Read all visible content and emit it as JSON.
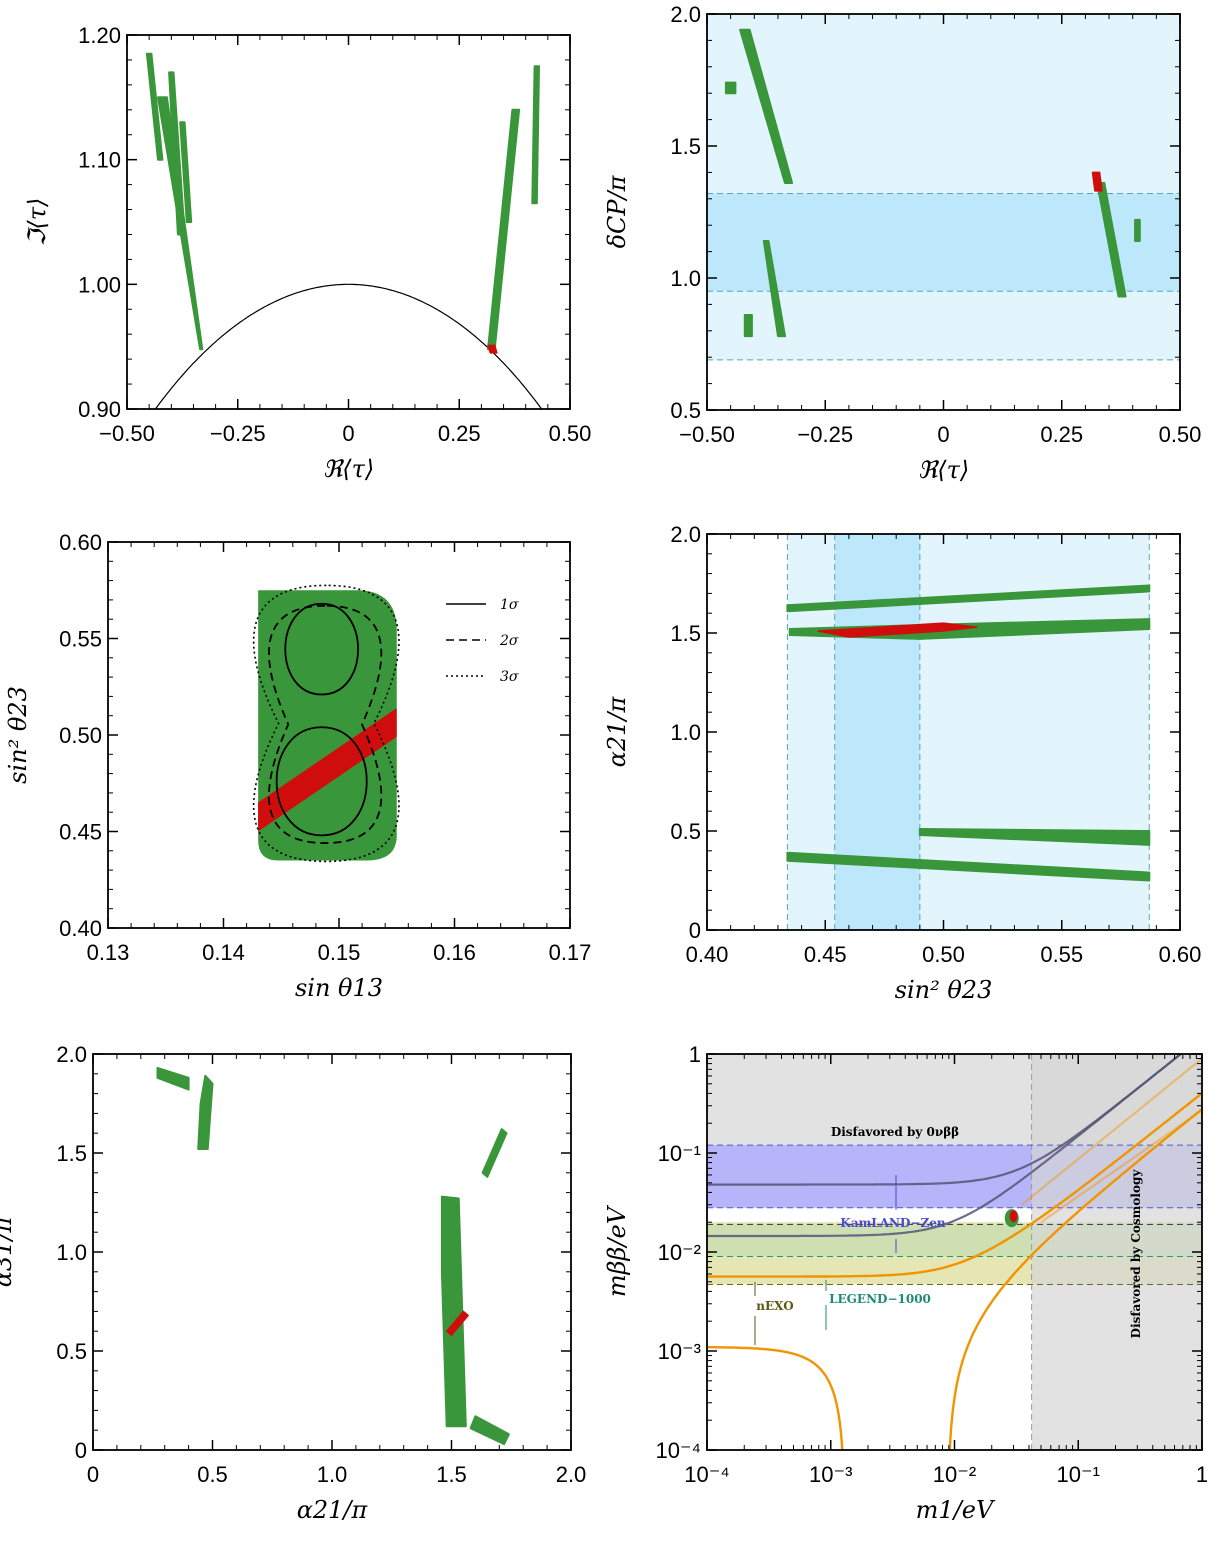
{
  "colors": {
    "green": "#3a963a",
    "red": "#d00d0d",
    "band_light": "#e2f4fc",
    "band_dark": "#bde8fb",
    "band_edge": "#5aa3b8",
    "curve": "#000000",
    "orange": "#f29400",
    "gray": "#e2e2e2",
    "gray_dark": "#d6d6d6",
    "kamland": "#a9a8f8",
    "legend_green": "#c8dfb2",
    "nexo": "#e6e6b4",
    "legend_line": "#2a9a72",
    "kamland_line": "#5454d8",
    "nexo_line": "#6a6a1e"
  },
  "chart_data": [
    {
      "id": "p1",
      "type": "scatter",
      "xlabel": "ℜ⟨τ⟩",
      "ylabel": "ℑ⟨τ⟩",
      "xlim": [
        -0.5,
        0.5
      ],
      "ylim": [
        0.9,
        1.2
      ],
      "xticks": [
        -0.5,
        -0.25,
        0,
        0.25,
        0.5
      ],
      "xtick_labels": [
        "−0.50",
        "−0.25",
        "0",
        "0.25",
        "0.50"
      ],
      "yticks": [
        0.9,
        1.0,
        1.1,
        1.2
      ],
      "ytick_labels": [
        "0.90",
        "1.00",
        "1.10",
        "1.20"
      ],
      "fundamental_domain_boundary": "|τ| = 1",
      "green_regions": [
        {
          "x": [
            -0.455,
            -0.445,
            -0.42,
            -0.43
          ],
          "y": [
            1.185,
            1.185,
            1.1,
            1.1
          ]
        },
        {
          "x": [
            -0.43,
            -0.41,
            -0.33,
            -0.335
          ],
          "y": [
            1.15,
            1.15,
            0.948,
            0.948
          ]
        },
        {
          "x": [
            -0.405,
            -0.395,
            -0.37,
            -0.385
          ],
          "y": [
            1.17,
            1.17,
            1.04,
            1.04
          ]
        },
        {
          "x": [
            -0.38,
            -0.37,
            -0.355,
            -0.365
          ],
          "y": [
            1.13,
            1.13,
            1.05,
            1.05
          ]
        },
        {
          "x": [
            0.315,
            0.33,
            0.385,
            0.37
          ],
          "y": [
            0.948,
            0.948,
            1.14,
            1.14
          ]
        },
        {
          "x": [
            0.415,
            0.425,
            0.43,
            0.42
          ],
          "y": [
            1.065,
            1.065,
            1.175,
            1.175
          ]
        }
      ],
      "red_regions": [
        {
          "x": [
            0.315,
            0.33,
            0.335,
            0.32
          ],
          "y": [
            0.951,
            0.951,
            0.945,
            0.945
          ]
        }
      ]
    },
    {
      "id": "p2",
      "type": "scatter",
      "xlabel": "ℜ⟨τ⟩",
      "ylabel": "δCP/π",
      "xlim": [
        -0.5,
        0.5
      ],
      "ylim": [
        0.5,
        2.0
      ],
      "xticks": [
        -0.5,
        -0.25,
        0,
        0.25,
        0.5
      ],
      "xtick_labels": [
        "−0.50",
        "−0.25",
        "0",
        "0.25",
        "0.50"
      ],
      "yticks": [
        0.5,
        1.0,
        1.5,
        2.0
      ],
      "ytick_labels": [
        "0.5",
        "1.0",
        "1.5",
        "2.0"
      ],
      "bands_3sigma": [
        0.69,
        2.0
      ],
      "bands_1sigma": [
        0.95,
        1.32
      ],
      "green_regions": [
        {
          "x": [
            -0.43,
            -0.41,
            -0.32,
            -0.335
          ],
          "y": [
            1.94,
            1.94,
            1.36,
            1.36
          ]
        },
        {
          "x": [
            -0.46,
            -0.44,
            -0.44,
            -0.46
          ],
          "y": [
            1.74,
            1.74,
            1.7,
            1.7
          ]
        },
        {
          "x": [
            -0.38,
            -0.37,
            -0.335,
            -0.35
          ],
          "y": [
            1.14,
            1.14,
            0.78,
            0.78
          ]
        },
        {
          "x": [
            -0.42,
            -0.405,
            -0.405,
            -0.42
          ],
          "y": [
            0.86,
            0.86,
            0.78,
            0.78
          ]
        },
        {
          "x": [
            0.325,
            0.34,
            0.385,
            0.37
          ],
          "y": [
            1.36,
            1.36,
            0.93,
            0.93
          ]
        },
        {
          "x": [
            0.405,
            0.415,
            0.415,
            0.405
          ],
          "y": [
            1.22,
            1.22,
            1.14,
            1.14
          ]
        }
      ],
      "red_regions": [
        {
          "x": [
            0.315,
            0.33,
            0.335,
            0.32
          ],
          "y": [
            1.4,
            1.4,
            1.33,
            1.33
          ]
        }
      ]
    },
    {
      "id": "p3",
      "type": "scatter",
      "xlabel": "sin θ13",
      "ylabel": "sin² θ23",
      "xlim": [
        0.13,
        0.17
      ],
      "ylim": [
        0.4,
        0.6
      ],
      "xticks": [
        0.13,
        0.14,
        0.15,
        0.16,
        0.17
      ],
      "xtick_labels": [
        "0.13",
        "0.14",
        "0.15",
        "0.16",
        "0.17"
      ],
      "yticks": [
        0.4,
        0.45,
        0.5,
        0.55,
        0.6
      ],
      "ytick_labels": [
        "0.40",
        "0.45",
        "0.50",
        "0.55",
        "0.60"
      ],
      "legend": {
        "position": "top-right",
        "entries": [
          "1σ",
          "2σ",
          "3σ"
        ]
      },
      "green_region": {
        "xrange": [
          0.143,
          0.155
        ],
        "yrange": [
          0.435,
          0.575
        ]
      },
      "red_band": {
        "x": [
          0.143,
          0.155,
          0.155,
          0.143
        ],
        "y": [
          0.45,
          0.499,
          0.514,
          0.465
        ]
      }
    },
    {
      "id": "p4",
      "type": "scatter",
      "xlabel": "sin² θ23",
      "ylabel": "α21/π",
      "xlim": [
        0.4,
        0.6
      ],
      "ylim": [
        0.0,
        2.0
      ],
      "xticks": [
        0.4,
        0.45,
        0.5,
        0.55,
        0.6
      ],
      "xtick_labels": [
        "0.40",
        "0.45",
        "0.50",
        "0.55",
        "0.60"
      ],
      "yticks": [
        0,
        0.5,
        1.0,
        1.5,
        2.0
      ],
      "ytick_labels": [
        "0",
        "0.5",
        "1.0",
        "1.5",
        "2.0"
      ],
      "bands_3sigma": [
        0.434,
        0.587
      ],
      "bands_1sigma": [
        0.454,
        0.49
      ],
      "green_regions": [
        {
          "x": [
            0.434,
            0.587,
            0.587,
            0.434
          ],
          "y": [
            1.64,
            1.74,
            1.71,
            1.61
          ]
        },
        {
          "x": [
            0.435,
            0.49,
            0.587,
            0.587,
            0.49,
            0.435
          ],
          "y": [
            1.52,
            1.54,
            1.57,
            1.52,
            1.47,
            1.49
          ]
        },
        {
          "x": [
            0.49,
            0.587,
            0.587,
            0.49
          ],
          "y": [
            0.51,
            0.5,
            0.43,
            0.48
          ]
        },
        {
          "x": [
            0.434,
            0.587,
            0.587,
            0.434
          ],
          "y": [
            0.39,
            0.29,
            0.25,
            0.35
          ]
        }
      ],
      "red_regions": [
        {
          "x": [
            0.447,
            0.5,
            0.514,
            0.5,
            0.46
          ],
          "y": [
            1.51,
            1.55,
            1.53,
            1.51,
            1.48
          ]
        }
      ]
    },
    {
      "id": "p5",
      "type": "scatter",
      "xlabel": "α21/π",
      "ylabel": "α31/π",
      "xlim": [
        0.0,
        2.0
      ],
      "ylim": [
        0.0,
        2.0
      ],
      "xticks": [
        0,
        0.5,
        1.0,
        1.5,
        2.0
      ],
      "xtick_labels": [
        "0",
        "0.5",
        "1.0",
        "1.5",
        "2.0"
      ],
      "yticks": [
        0,
        0.5,
        1.0,
        1.5,
        2.0
      ],
      "ytick_labels": [
        "0",
        "0.5",
        "1.0",
        "1.5",
        "2.0"
      ],
      "green_regions": [
        {
          "x": [
            0.27,
            0.4,
            0.4,
            0.27
          ],
          "y": [
            1.93,
            1.88,
            1.82,
            1.88
          ]
        },
        {
          "x": [
            0.47,
            0.5,
            0.48,
            0.44,
            0.45
          ],
          "y": [
            1.89,
            1.85,
            1.52,
            1.52,
            1.75
          ]
        },
        {
          "x": [
            1.46,
            1.53,
            1.56,
            1.48,
            1.46
          ],
          "y": [
            1.28,
            1.27,
            0.12,
            0.12,
            0.9
          ]
        },
        {
          "x": [
            1.63,
            1.71,
            1.73,
            1.65
          ],
          "y": [
            1.4,
            1.62,
            1.6,
            1.38
          ]
        },
        {
          "x": [
            1.6,
            1.74,
            1.72,
            1.58
          ],
          "y": [
            0.17,
            0.08,
            0.03,
            0.11
          ]
        }
      ],
      "red_regions": [
        {
          "x": [
            1.48,
            1.55,
            1.57,
            1.5
          ],
          "y": [
            0.6,
            0.7,
            0.68,
            0.58
          ]
        }
      ]
    },
    {
      "id": "p6",
      "type": "line",
      "xlabel": "m1/eV",
      "ylabel": "mββ/eV",
      "xscale": "log",
      "yscale": "log",
      "xlim": [
        0.0001,
        1
      ],
      "ylim": [
        0.0001,
        1
      ],
      "xticks": [
        0.0001,
        0.001,
        0.01,
        0.1,
        1
      ],
      "xtick_labels": [
        "10⁻⁴",
        "10⁻³",
        "10⁻²",
        "10⁻¹",
        "1"
      ],
      "yticks": [
        0.0001,
        0.001,
        0.01,
        0.1,
        1
      ],
      "ytick_labels": [
        "10⁻⁴",
        "10⁻³",
        "10⁻²",
        "10⁻¹",
        "1"
      ],
      "cosmology_bound": 0.042,
      "excluded_0vbb": 0.12,
      "kamland_band": [
        0.028,
        0.12
      ],
      "legend_band": [
        0.009,
        0.019
      ],
      "nexo_band": [
        0.0047,
        0.02
      ],
      "annotations": {
        "disfavored_0vbb": "Disfavored by 0νββ",
        "kamland": "KamLAND−Zen",
        "legend": "LEGEND−1000",
        "nexo": "nEXO",
        "cosmology": "Disfavored by Cosmology"
      },
      "red_point": {
        "x": 0.03,
        "y": 0.023
      }
    }
  ]
}
